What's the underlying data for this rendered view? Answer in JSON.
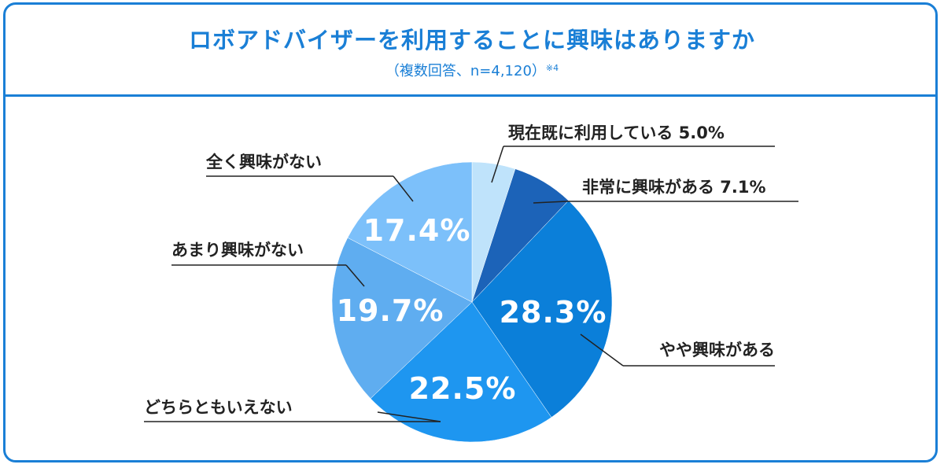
{
  "header": {
    "title": "ロボアドバイザーを利用することに興味はありますか",
    "subtitle": "（複数回答、n=4,120）",
    "note_mark": "※4"
  },
  "colors": {
    "frame": "#1a7fd6",
    "title": "#1a7fd6",
    "slices": [
      "#bfe3fb",
      "#1c63b8",
      "#0b7fd9",
      "#1e96f0",
      "#5fadf0",
      "#7cc0fa"
    ]
  },
  "chart_data": {
    "type": "pie",
    "start_angle_deg": 0,
    "direction": "clockwise",
    "slices": [
      {
        "label": "現在既に利用している",
        "value": 5.0,
        "value_label": "5.0%",
        "inside_label": ""
      },
      {
        "label": "非常に興味がある",
        "value": 7.1,
        "value_label": "7.1%",
        "inside_label": ""
      },
      {
        "label": "やや興味がある",
        "value": 28.3,
        "value_label": "",
        "inside_label": "28.3%"
      },
      {
        "label": "どちらともいえない",
        "value": 22.5,
        "value_label": "",
        "inside_label": "22.5%"
      },
      {
        "label": "あまり興味がない",
        "value": 19.7,
        "value_label": "",
        "inside_label": "19.7%"
      },
      {
        "label": "全く興味がない",
        "value": 17.4,
        "value_label": "",
        "inside_label": "17.4%"
      }
    ]
  }
}
